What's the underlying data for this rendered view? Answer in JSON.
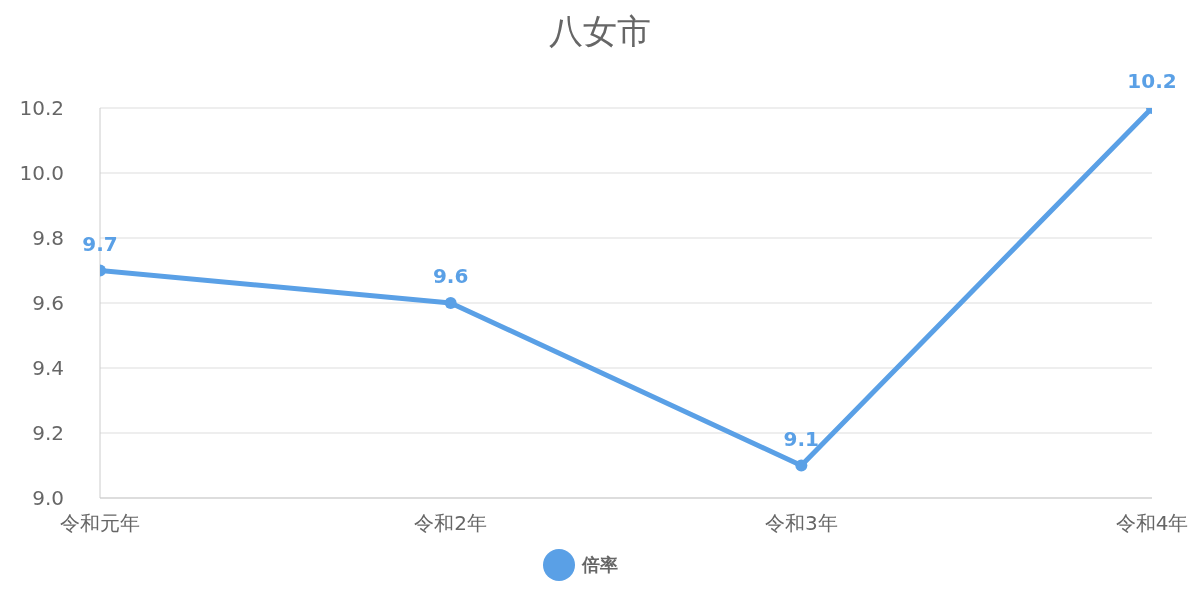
{
  "chart_data": {
    "type": "line",
    "title": "八女市",
    "categories": [
      "令和元年",
      "令和2年",
      "令和3年",
      "令和4年"
    ],
    "series": [
      {
        "name": "倍率",
        "color": "#5aa0e6",
        "values": [
          9.7,
          9.6,
          9.1,
          10.2
        ]
      }
    ],
    "ylim": [
      9.0,
      10.2
    ],
    "yticks": [
      {
        "value": 9.0,
        "label": "9.0"
      },
      {
        "value": 9.2,
        "label": "9.2"
      },
      {
        "value": 9.4,
        "label": "9.4"
      },
      {
        "value": 9.6,
        "label": "9.6"
      },
      {
        "value": 9.8,
        "label": "9.8"
      },
      {
        "value": 10.0,
        "label": "10.0"
      },
      {
        "value": 10.2,
        "label": "10.2"
      }
    ],
    "grid": "y",
    "legend": "bottom",
    "marker": "circle",
    "line_style": "solid",
    "data_labels": true
  }
}
